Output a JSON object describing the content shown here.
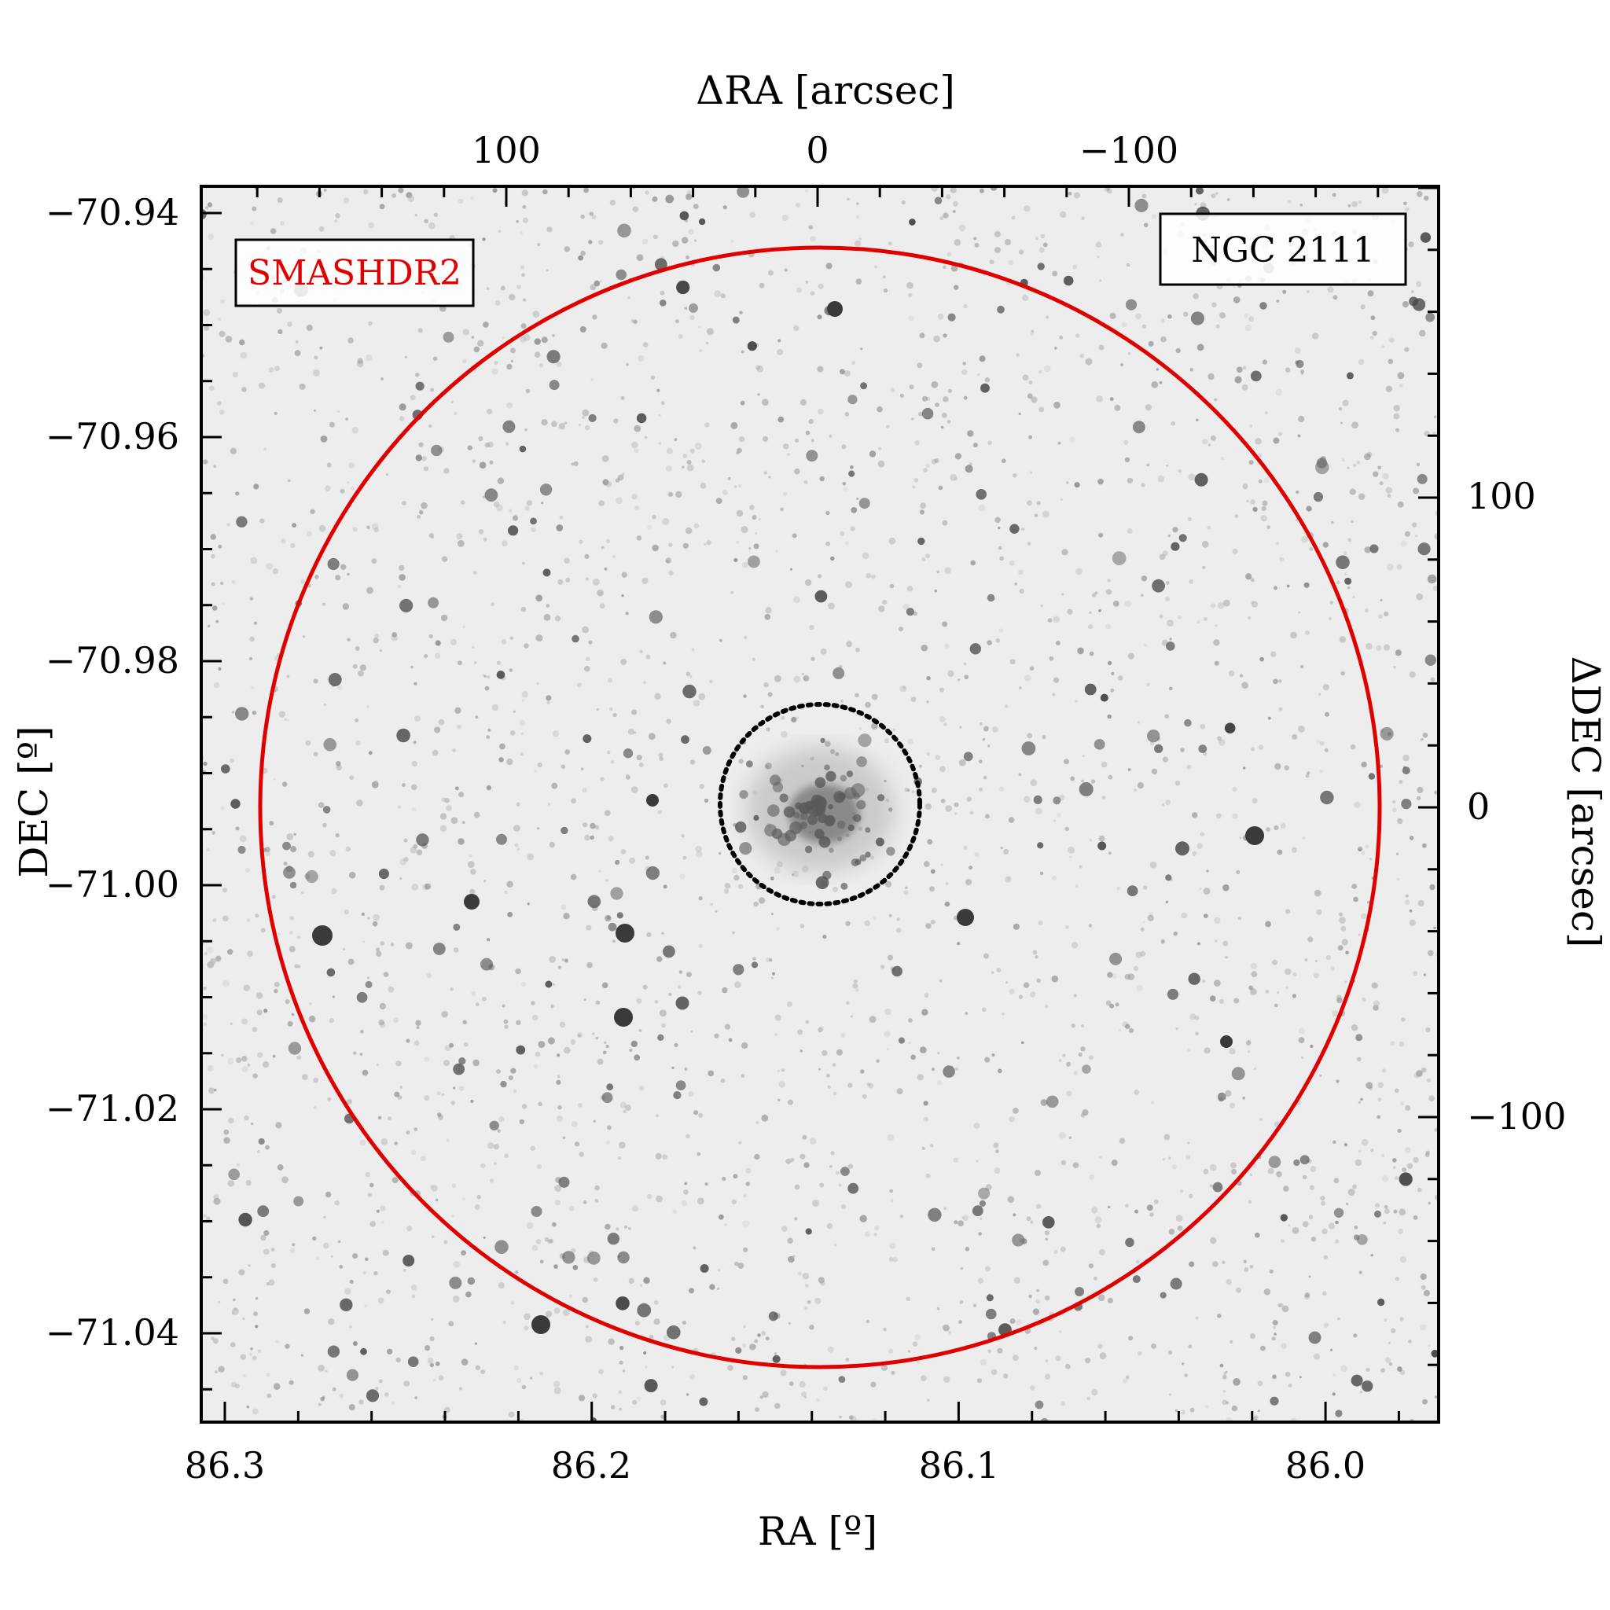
{
  "figure": {
    "top_axis": {
      "label": "ΔRA [arcsec]",
      "ticks": [
        {
          "value": 100,
          "label": "100"
        },
        {
          "value": 0,
          "label": "0"
        },
        {
          "value": -100,
          "label": "−100"
        }
      ]
    },
    "bottom_axis": {
      "label": "RA [º]",
      "ticks": [
        {
          "value": 86.3,
          "label": "86.3"
        },
        {
          "value": 86.2,
          "label": "86.2"
        },
        {
          "value": 86.1,
          "label": "86.1"
        },
        {
          "value": 86.0,
          "label": "86.0"
        }
      ]
    },
    "left_axis": {
      "label": "DEC [º]",
      "ticks": [
        {
          "value": -70.94,
          "label": "−70.94"
        },
        {
          "value": -70.96,
          "label": "−70.96"
        },
        {
          "value": -70.98,
          "label": "−70.98"
        },
        {
          "value": -71.0,
          "label": "−71.00"
        },
        {
          "value": -71.02,
          "label": "−71.02"
        },
        {
          "value": -71.04,
          "label": "−71.04"
        }
      ]
    },
    "right_axis": {
      "label": "ΔDEC [arcsec]",
      "ticks": [
        {
          "value": 100,
          "label": "100"
        },
        {
          "value": 0,
          "label": "0"
        },
        {
          "value": -100,
          "label": "−100"
        }
      ]
    },
    "survey_badge": {
      "text": "SMASHDR2",
      "color": "#e00000"
    },
    "object_badge": {
      "text": "NGC 2111",
      "color": "#000000"
    },
    "outer_circle": {
      "color": "#e00000",
      "style": "solid"
    },
    "inner_circle": {
      "color": "#000000",
      "style": "dotted"
    },
    "image_style": "grayscale inverted star field"
  }
}
